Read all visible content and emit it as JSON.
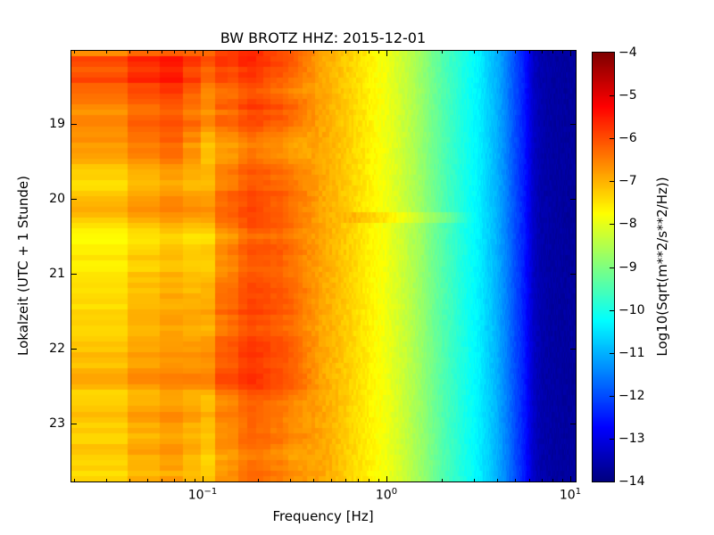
{
  "chart_data": {
    "type": "heatmap",
    "title": "BW BROTZ HHZ: 2015-12-01",
    "xlabel": "Frequency [Hz]",
    "ylabel": "Lokalzeit (UTC + 1 Stunde)",
    "x_scale": "log",
    "x_range_hz": [
      0.0195,
      10.7
    ],
    "x_major_ticks": [
      {
        "hz": 0.1,
        "base": "10",
        "exp": "−1"
      },
      {
        "hz": 1.0,
        "base": "10",
        "exp": "0"
      },
      {
        "hz": 10.0,
        "base": "10",
        "exp": "1"
      }
    ],
    "x_minor_ticks_hz": [
      0.02,
      0.03,
      0.04,
      0.05,
      0.06,
      0.07,
      0.08,
      0.09,
      0.2,
      0.3,
      0.4,
      0.5,
      0.6,
      0.7,
      0.8,
      0.9,
      2,
      3,
      4,
      5,
      6,
      7,
      8,
      9
    ],
    "y_range_hours": [
      18.02,
      23.77
    ],
    "y_ticks": [
      {
        "hour": 19,
        "label": "19"
      },
      {
        "hour": 20,
        "label": "20"
      },
      {
        "hour": 21,
        "label": "21"
      },
      {
        "hour": 22,
        "label": "22"
      },
      {
        "hour": 23,
        "label": "23"
      }
    ],
    "colorbar": {
      "label": "Log10(Sqrt(m**2/s**2/Hz))",
      "colormap": "jet",
      "limits": [
        -14,
        -4
      ],
      "ticks": [
        {
          "value": -4,
          "label": "−4"
        },
        {
          "value": -5,
          "label": "−5"
        },
        {
          "value": -6,
          "label": "−6"
        },
        {
          "value": -7,
          "label": "−7"
        },
        {
          "value": -8,
          "label": "−8"
        },
        {
          "value": -9,
          "label": "−9"
        },
        {
          "value": -10,
          "label": "−10"
        },
        {
          "value": -11,
          "label": "−11"
        },
        {
          "value": -12,
          "label": "−12"
        },
        {
          "value": -13,
          "label": "−13"
        },
        {
          "value": -14,
          "label": "−14"
        }
      ]
    },
    "spectral_profile": {
      "log10_freq_hz": [
        -1.72,
        -1.46,
        -1.25,
        -1.1,
        -0.98,
        -0.85,
        -0.77,
        -0.68,
        -0.585,
        -0.495,
        -0.4,
        -0.3,
        -0.2,
        -0.1,
        0.0,
        0.1,
        0.2,
        0.3,
        0.4,
        0.5,
        0.6,
        0.65,
        0.7,
        0.75,
        0.775,
        0.8,
        0.84,
        0.9,
        1.0,
        1.03
      ],
      "level": [
        -7.5,
        -7.35,
        -7.15,
        -7.0,
        -7.1,
        -6.5,
        -6.25,
        -6.2,
        -6.35,
        -6.55,
        -6.75,
        -7.0,
        -7.3,
        -7.6,
        -7.9,
        -8.3,
        -8.8,
        -9.4,
        -9.9,
        -10.35,
        -11.0,
        -11.45,
        -12.0,
        -12.5,
        -12.9,
        -13.3,
        -13.55,
        -13.65,
        -13.7,
        -13.7
      ]
    },
    "features": {
      "microseism_band_hz": [
        0.13,
        0.25
      ],
      "microseism_peak_level": -6.0,
      "elevated_low_freq_hours": [
        18.05,
        19.5
      ],
      "elevated_low_freq_max_hz": 0.13,
      "quiet_band_above_hz": 6.0,
      "quiet_band_level": -13.6,
      "bright_row_hour": 20.25,
      "time_rows": 80,
      "freq_bin_width_hz": 0.0195
    }
  }
}
